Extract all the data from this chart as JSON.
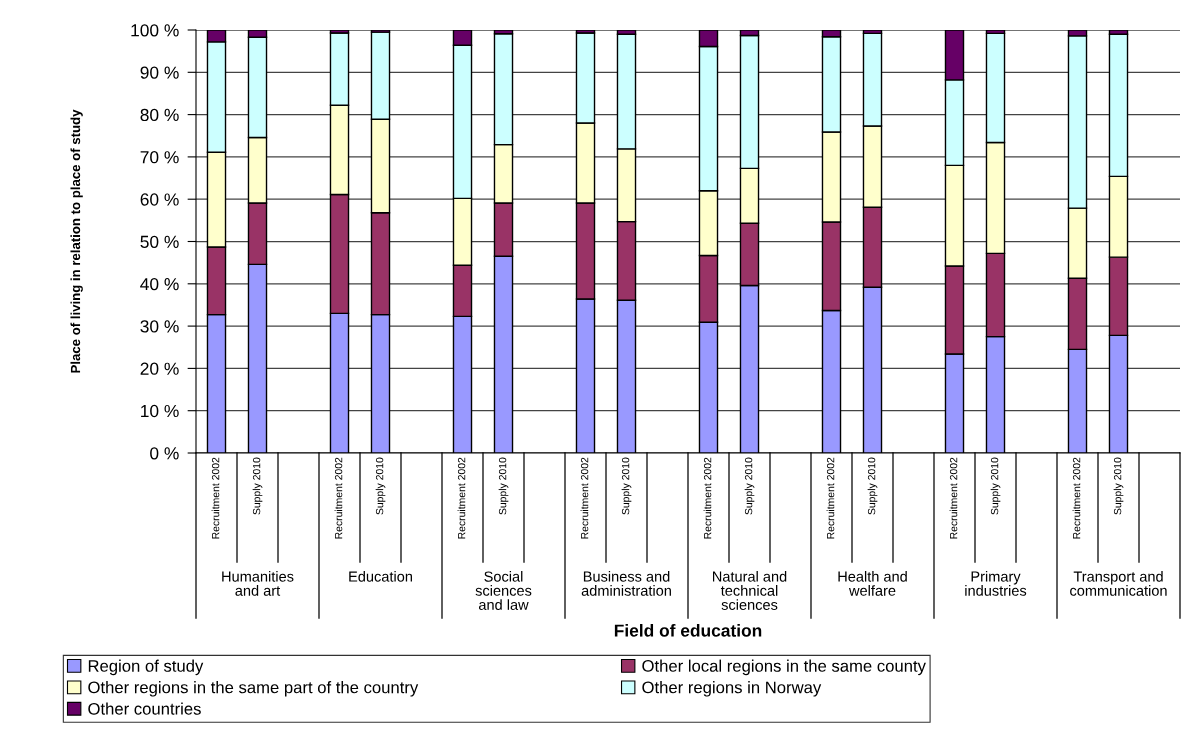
{
  "chart_data": {
    "type": "bar",
    "stacked": true,
    "xlabel": "Field of education",
    "ylabel": "Place of living in relation to place of study",
    "categories": [
      "Recruitment 2002",
      "Supply 2010",
      null,
      "Recruitment 2002",
      "Supply 2010",
      null,
      "Recruitment 2002",
      "Supply 2010",
      null,
      "Recruitment 2002",
      "Supply 2010",
      null,
      "Recruitment 2002",
      "Supply 2010",
      null,
      "Recruitment 2002",
      "Supply 2010",
      null,
      "Recruitment 2002",
      "Supply 2010",
      null,
      "Recruitment 2002",
      "Supply 2010",
      null
    ],
    "annotations": [
      "Humanities\nand art",
      "Education",
      "Social\nsciences\nand law",
      "Business and\nadministration",
      "Natural and\ntechnical\nsciences",
      "Health and\nwelfare",
      "Primary\nindustries",
      "Transport and\ncommunication"
    ],
    "series": [
      {
        "name": "Region of study",
        "color": "#9999ff",
        "values": [
          32.7,
          44.6,
          null,
          33.0,
          32.7,
          null,
          32.3,
          46.5,
          null,
          36.4,
          36.1,
          null,
          30.9,
          39.6,
          null,
          33.7,
          39.2,
          null,
          23.4,
          27.5,
          null,
          24.5,
          27.8,
          null
        ]
      },
      {
        "name": "Other local regions in the same county",
        "color": "#993366",
        "values": [
          16.0,
          14.5,
          null,
          28.1,
          24.1,
          null,
          12.1,
          12.6,
          null,
          22.7,
          18.6,
          null,
          15.8,
          14.7,
          null,
          20.9,
          18.9,
          null,
          20.8,
          19.7,
          null,
          16.8,
          18.5,
          null
        ]
      },
      {
        "name": "Other regions in the same part of the country",
        "color": "#ffffcc",
        "values": [
          22.4,
          15.5,
          null,
          21.1,
          22.1,
          null,
          15.8,
          13.8,
          null,
          18.9,
          17.2,
          null,
          15.3,
          13.0,
          null,
          21.3,
          19.2,
          null,
          23.8,
          26.2,
          null,
          16.6,
          19.1,
          null
        ]
      },
      {
        "name": "Other regions in Norway",
        "color": "#ccffff",
        "values": [
          26.1,
          23.7,
          null,
          17.1,
          20.6,
          null,
          36.2,
          26.2,
          null,
          21.3,
          27.1,
          null,
          34.1,
          31.4,
          null,
          22.5,
          21.9,
          null,
          20.2,
          25.8,
          null,
          40.7,
          33.6,
          null
        ]
      },
      {
        "name": "Other countries",
        "color": "#660066",
        "values": [
          2.8,
          1.7,
          null,
          0.7,
          0.5,
          null,
          3.6,
          0.9,
          null,
          0.7,
          1.0,
          null,
          3.9,
          1.3,
          null,
          1.6,
          0.8,
          null,
          11.8,
          0.8,
          null,
          1.4,
          1.0,
          null
        ]
      }
    ],
    "ylim": [
      0,
      100
    ],
    "yticks": [
      {
        "value": 0,
        "label": "0 %"
      },
      {
        "value": 10,
        "label": "10 %"
      },
      {
        "value": 20,
        "label": "20 %"
      },
      {
        "value": 30,
        "label": "30 %"
      },
      {
        "value": 40,
        "label": "40 %"
      },
      {
        "value": 50,
        "label": "50 %"
      },
      {
        "value": 60,
        "label": "60 %"
      },
      {
        "value": 70,
        "label": "70 %"
      },
      {
        "value": 80,
        "label": "80 %"
      },
      {
        "value": 90,
        "label": "90 %"
      },
      {
        "value": 100,
        "label": "100 %"
      }
    ],
    "grid": "y",
    "legend": "bottom"
  }
}
